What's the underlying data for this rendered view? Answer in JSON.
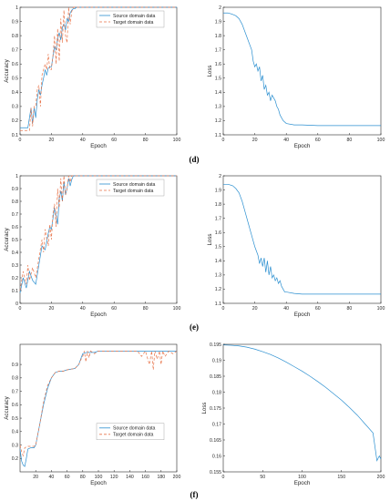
{
  "colors": {
    "source": "#2b8fd0",
    "target": "#e8744a",
    "axis": "#262626"
  },
  "panel_labels": [
    "(d)",
    "(e)",
    "(f)"
  ],
  "chart_data": [
    {
      "id": "d-acc",
      "type": "line",
      "xlabel": "Epoch",
      "ylabel": "Accuracy",
      "xlim": [
        0,
        100
      ],
      "ylim": [
        0.1,
        1.0
      ],
      "xticks": [
        "0",
        "20",
        "40",
        "60",
        "80",
        "100"
      ],
      "yticks": [
        "0.1",
        "0.2",
        "0.3",
        "0.4",
        "0.5",
        "0.6",
        "0.7",
        "0.8",
        "0.9",
        "1"
      ],
      "legend": "top-right",
      "series": [
        {
          "name": "Source domain data",
          "color": "#2b8fd0",
          "dash": "none",
          "x": [
            0,
            5,
            7,
            8,
            9,
            10,
            11,
            12,
            13,
            14,
            15,
            16,
            17,
            18,
            19,
            20,
            21,
            22,
            23,
            24,
            25,
            26,
            27,
            28,
            29,
            30,
            31,
            32,
            33,
            34,
            35,
            36,
            37,
            38,
            40,
            50,
            60,
            70,
            80,
            90,
            100
          ],
          "y": [
            0.15,
            0.15,
            0.29,
            0.18,
            0.29,
            0.22,
            0.35,
            0.42,
            0.38,
            0.45,
            0.5,
            0.56,
            0.52,
            0.57,
            0.58,
            0.58,
            0.65,
            0.72,
            0.7,
            0.78,
            0.82,
            0.77,
            0.86,
            0.88,
            0.84,
            0.92,
            0.9,
            0.96,
            0.98,
            0.99,
            0.99,
            1.0,
            1.0,
            1.0,
            1.0,
            1.0,
            1.0,
            1.0,
            1.0,
            1.0,
            1.0
          ]
        },
        {
          "name": "Target domain data",
          "color": "#e8744a",
          "dash": "3,2",
          "x": [
            0,
            6,
            7,
            8,
            9,
            10,
            11,
            12,
            13,
            14,
            15,
            16,
            17,
            18,
            19,
            20,
            21,
            22,
            23,
            24,
            25,
            26,
            27,
            28,
            29,
            30,
            31,
            32,
            33,
            34,
            35,
            36,
            38,
            40,
            50,
            60,
            70,
            80,
            90,
            100
          ],
          "y": [
            0.13,
            0.13,
            0.29,
            0.16,
            0.3,
            0.3,
            0.42,
            0.45,
            0.3,
            0.52,
            0.56,
            0.6,
            0.56,
            0.67,
            0.56,
            0.56,
            0.66,
            0.8,
            0.6,
            0.85,
            0.62,
            0.92,
            0.75,
            0.98,
            0.8,
            0.75,
            1.0,
            0.88,
            0.97,
            1.0,
            1.0,
            1.0,
            1.0,
            1.0,
            1.0,
            1.0,
            1.0,
            1.0,
            1.0,
            1.0
          ]
        }
      ]
    },
    {
      "id": "d-loss",
      "type": "line",
      "xlabel": "Epoch",
      "ylabel": "Loss",
      "xlim": [
        0,
        100
      ],
      "ylim": [
        1.1,
        2.0
      ],
      "xticks": [
        "0",
        "20",
        "40",
        "60",
        "80",
        "100"
      ],
      "yticks": [
        "1.1",
        "1.2",
        "1.3",
        "1.4",
        "1.5",
        "1.6",
        "1.7",
        "1.8",
        "1.9",
        "2"
      ],
      "series": [
        {
          "name": "",
          "color": "#2b8fd0",
          "dash": "none",
          "x": [
            0,
            3,
            6,
            8,
            10,
            12,
            14,
            16,
            18,
            19,
            20,
            21,
            22,
            23,
            24,
            25,
            26,
            27,
            28,
            29,
            30,
            31,
            32,
            33,
            34,
            35,
            36,
            38,
            40,
            45,
            50,
            60,
            70,
            80,
            90,
            100
          ],
          "y": [
            1.96,
            1.96,
            1.95,
            1.94,
            1.92,
            1.88,
            1.82,
            1.76,
            1.7,
            1.62,
            1.58,
            1.6,
            1.55,
            1.58,
            1.48,
            1.52,
            1.42,
            1.45,
            1.38,
            1.4,
            1.34,
            1.38,
            1.36,
            1.34,
            1.3,
            1.28,
            1.24,
            1.2,
            1.18,
            1.17,
            1.17,
            1.165,
            1.165,
            1.165,
            1.165,
            1.165
          ]
        }
      ]
    },
    {
      "id": "e-acc",
      "type": "line",
      "xlabel": "Epoch",
      "ylabel": "Accuracy",
      "xlim": [
        0,
        100
      ],
      "ylim": [
        0.0,
        1.0
      ],
      "xticks": [
        "0",
        "20",
        "40",
        "60",
        "80",
        "100"
      ],
      "yticks": [
        "0",
        "0.1",
        "0.2",
        "0.3",
        "0.4",
        "0.5",
        "0.6",
        "0.7",
        "0.8",
        "0.9",
        "1"
      ],
      "legend": "top-right",
      "series": [
        {
          "name": "Source domain data",
          "color": "#2b8fd0",
          "dash": "none",
          "x": [
            0,
            2,
            4,
            6,
            8,
            10,
            12,
            14,
            16,
            18,
            19,
            20,
            22,
            24,
            25,
            26,
            27,
            28,
            29,
            30,
            31,
            32,
            33,
            34,
            35,
            36,
            38,
            40,
            50,
            60,
            70,
            80,
            90,
            100
          ],
          "y": [
            0.08,
            0.2,
            0.12,
            0.25,
            0.18,
            0.15,
            0.3,
            0.45,
            0.42,
            0.55,
            0.6,
            0.58,
            0.75,
            0.62,
            0.82,
            0.88,
            0.8,
            0.95,
            0.85,
            0.9,
            0.98,
            0.92,
            0.97,
            1.0,
            1.0,
            1.0,
            1.0,
            1.0,
            1.0,
            1.0,
            1.0,
            1.0,
            1.0,
            1.0
          ]
        },
        {
          "name": "Target domain data",
          "color": "#e8744a",
          "dash": "3,2",
          "x": [
            0,
            2,
            4,
            5,
            6,
            8,
            10,
            12,
            14,
            15,
            16,
            18,
            19,
            20,
            21,
            22,
            23,
            24,
            25,
            26,
            27,
            28,
            29,
            30,
            31,
            32,
            33,
            34,
            35,
            36,
            38,
            40,
            50,
            60,
            70,
            80,
            90,
            100
          ],
          "y": [
            0.1,
            0.25,
            0.15,
            0.3,
            0.18,
            0.28,
            0.2,
            0.35,
            0.5,
            0.4,
            0.58,
            0.45,
            0.62,
            0.5,
            0.7,
            0.78,
            0.6,
            0.9,
            0.75,
            0.98,
            0.8,
            1.0,
            0.85,
            0.9,
            1.0,
            0.95,
            1.0,
            1.0,
            1.0,
            1.0,
            1.0,
            1.0,
            1.0,
            1.0,
            1.0,
            1.0,
            1.0,
            1.0
          ]
        }
      ]
    },
    {
      "id": "e-loss",
      "type": "line",
      "xlabel": "Epoch",
      "ylabel": "Loss",
      "xlim": [
        0,
        100
      ],
      "ylim": [
        1.1,
        2.0
      ],
      "xticks": [
        "0",
        "20",
        "40",
        "60",
        "80",
        "100"
      ],
      "yticks": [
        "1.1",
        "1.2",
        "1.3",
        "1.4",
        "1.5",
        "1.6",
        "1.7",
        "1.8",
        "1.9",
        "2"
      ],
      "series": [
        {
          "name": "",
          "color": "#2b8fd0",
          "dash": "none",
          "x": [
            0,
            3,
            6,
            8,
            10,
            12,
            14,
            16,
            18,
            20,
            22,
            23,
            24,
            25,
            26,
            27,
            28,
            29,
            30,
            31,
            32,
            33,
            34,
            35,
            36,
            37,
            38,
            39,
            40,
            45,
            50,
            60,
            70,
            80,
            90,
            100
          ],
          "y": [
            1.94,
            1.94,
            1.93,
            1.91,
            1.88,
            1.82,
            1.74,
            1.66,
            1.58,
            1.5,
            1.44,
            1.38,
            1.42,
            1.36,
            1.42,
            1.32,
            1.4,
            1.3,
            1.36,
            1.28,
            1.3,
            1.26,
            1.28,
            1.24,
            1.26,
            1.22,
            1.2,
            1.18,
            1.18,
            1.17,
            1.165,
            1.165,
            1.165,
            1.165,
            1.165,
            1.165
          ]
        }
      ]
    },
    {
      "id": "f-acc",
      "type": "line",
      "xlabel": "Epoch",
      "ylabel": "Accuracy",
      "xlim": [
        0,
        200
      ],
      "ylim": [
        0.1,
        1.05
      ],
      "xticks": [
        "20",
        "40",
        "60",
        "80",
        "100",
        "120",
        "140",
        "160",
        "180",
        "200"
      ],
      "yticks": [
        "0.2",
        "0.3",
        "0.4",
        "0.5",
        "0.6",
        "0.7",
        "0.8",
        "0.9"
      ],
      "legend": "bottom-right",
      "series": [
        {
          "name": "Source domain data",
          "color": "#2b8fd0",
          "dash": "none",
          "x": [
            0,
            2,
            4,
            6,
            8,
            10,
            14,
            18,
            20,
            25,
            30,
            35,
            40,
            45,
            50,
            55,
            60,
            70,
            75,
            78,
            80,
            85,
            90,
            95,
            100,
            110,
            120,
            130,
            140,
            150,
            160,
            165,
            170,
            175,
            180,
            190,
            200
          ],
          "y": [
            0.27,
            0.18,
            0.15,
            0.14,
            0.2,
            0.27,
            0.28,
            0.28,
            0.3,
            0.45,
            0.6,
            0.72,
            0.8,
            0.84,
            0.85,
            0.85,
            0.86,
            0.87,
            0.9,
            0.95,
            0.98,
            0.99,
            0.99,
            0.99,
            1.0,
            1.0,
            1.0,
            1.0,
            1.0,
            1.0,
            1.0,
            1.0,
            1.0,
            1.0,
            1.0,
            1.0,
            1.0
          ]
        },
        {
          "name": "Target domain data",
          "color": "#e8744a",
          "dash": "3,2",
          "x": [
            0,
            2,
            4,
            6,
            10,
            14,
            18,
            20,
            25,
            30,
            35,
            40,
            45,
            50,
            55,
            60,
            70,
            75,
            78,
            80,
            82,
            84,
            86,
            88,
            90,
            95,
            100,
            110,
            120,
            130,
            140,
            150,
            155,
            160,
            165,
            168,
            170,
            172,
            175,
            178,
            180,
            182,
            185,
            190,
            195,
            200
          ],
          "y": [
            0.3,
            0.25,
            0.22,
            0.28,
            0.29,
            0.29,
            0.29,
            0.3,
            0.45,
            0.62,
            0.74,
            0.8,
            0.84,
            0.85,
            0.85,
            0.86,
            0.87,
            0.9,
            0.94,
            0.96,
            1.0,
            0.92,
            1.0,
            0.95,
            1.0,
            0.98,
            1.0,
            1.0,
            1.0,
            1.0,
            1.0,
            1.0,
            0.96,
            1.0,
            0.9,
            1.0,
            0.86,
            1.0,
            0.94,
            1.0,
            0.9,
            1.0,
            0.96,
            1.0,
            0.98,
            1.0
          ]
        }
      ]
    },
    {
      "id": "f-loss",
      "type": "line",
      "xlabel": "Epoch",
      "ylabel": "Loss",
      "xlim": [
        0,
        200
      ],
      "ylim": [
        0.155,
        0.195
      ],
      "xticks": [
        "0",
        "50",
        "100",
        "150",
        "200"
      ],
      "yticks": [
        "0.155",
        "0.16",
        "0.165",
        "0.17",
        "0.175",
        "0.18",
        "0.185",
        "0.19",
        "0.195"
      ],
      "series": [
        {
          "name": "",
          "color": "#2b8fd0",
          "dash": "none",
          "x": [
            0,
            10,
            20,
            30,
            40,
            50,
            60,
            70,
            80,
            90,
            100,
            110,
            120,
            130,
            140,
            150,
            160,
            170,
            180,
            190,
            195,
            198,
            200
          ],
          "y": [
            0.1948,
            0.1947,
            0.1945,
            0.1941,
            0.1935,
            0.1927,
            0.1918,
            0.1907,
            0.1894,
            0.188,
            0.1866,
            0.185,
            0.1833,
            0.1815,
            0.1795,
            0.1775,
            0.1752,
            0.1728,
            0.17,
            0.1672,
            0.1585,
            0.16,
            0.159
          ]
        }
      ]
    }
  ]
}
